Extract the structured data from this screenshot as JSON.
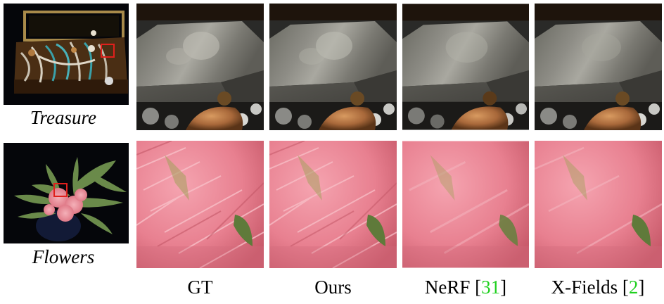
{
  "rows": [
    {
      "label": "Treasure"
    },
    {
      "label": "Flowers"
    }
  ],
  "columns": [
    {
      "label": "GT"
    },
    {
      "label": "Ours"
    },
    {
      "label": "NeRF",
      "ref": "31"
    },
    {
      "label": "X-Fields",
      "ref": "2"
    }
  ],
  "colors": {
    "highlight_box": "#e0201c",
    "citation": "#1fd01f",
    "scene_background": "#05060a",
    "petal_pink": "#ea8090",
    "leaf_green": "#5f7a3a"
  }
}
